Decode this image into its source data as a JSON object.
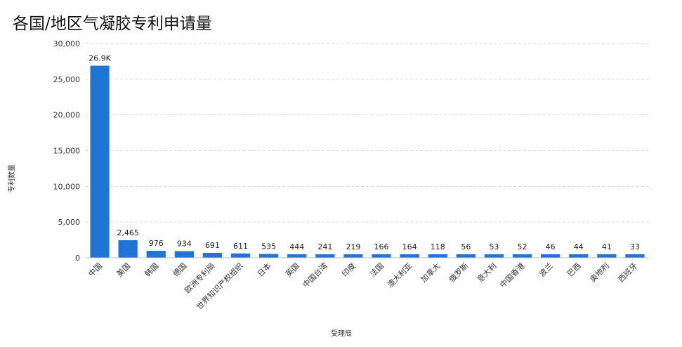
{
  "chart_data": {
    "type": "bar",
    "title": "各国/地区气凝胶专利申请量",
    "xlabel": "受理局",
    "ylabel": "专利数量",
    "ylim": [
      0,
      30000
    ],
    "yticks": [
      "0",
      "5,000",
      "10,000",
      "15,000",
      "20,000",
      "25,000",
      "30,000"
    ],
    "grid": true,
    "color": "#1f74d6",
    "categories": [
      "中国",
      "美国",
      "韩国",
      "德国",
      "欧洲专利局",
      "世界知识产权组织",
      "日本",
      "英国",
      "中国台湾",
      "印度",
      "法国",
      "澳大利亚",
      "加拿大",
      "俄罗斯",
      "意大利",
      "中国香港",
      "波兰",
      "巴西",
      "奥地利",
      "西班牙"
    ],
    "values": [
      26900,
      2465,
      976,
      934,
      691,
      611,
      535,
      444,
      241,
      219,
      166,
      164,
      118,
      56,
      53,
      52,
      46,
      44,
      41,
      33
    ],
    "data_labels": [
      "26.9K",
      "2,465",
      "976",
      "934",
      "691",
      "611",
      "535",
      "444",
      "241",
      "219",
      "166",
      "164",
      "118",
      "56",
      "53",
      "52",
      "46",
      "44",
      "41",
      "33"
    ]
  }
}
